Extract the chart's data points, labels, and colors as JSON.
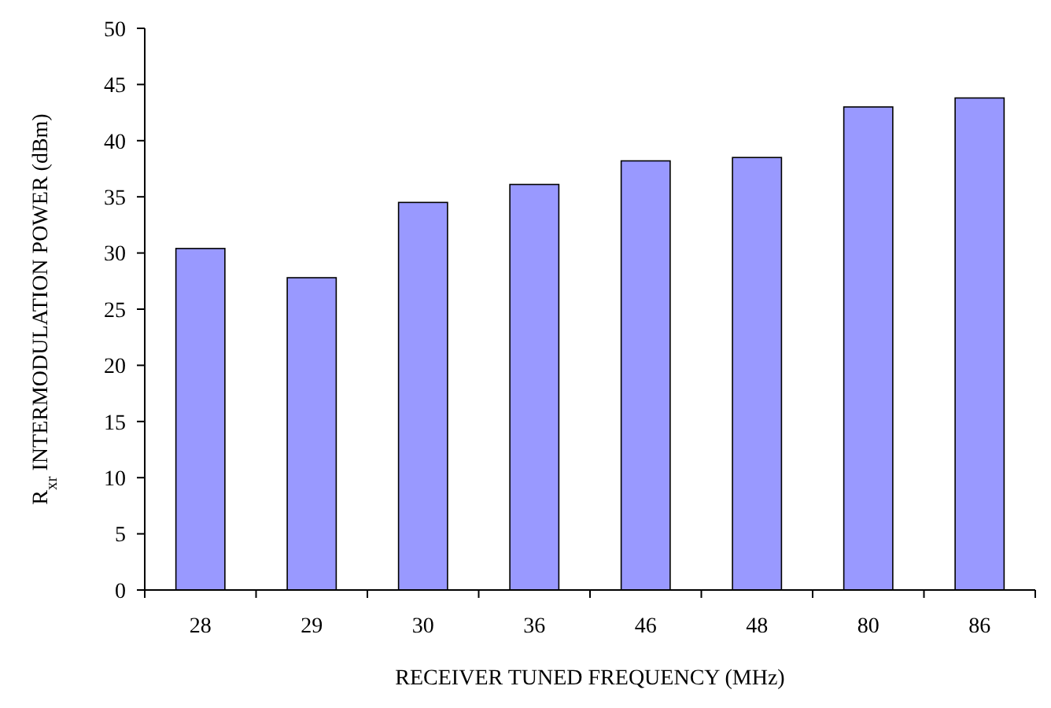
{
  "chart_data": {
    "type": "bar",
    "xlabel": "RECEIVER TUNED FREQUENCY (MHz)",
    "ylabel": "R$_{xr}$ INTERMODULATION POWER (dBm)",
    "categories": [
      "28",
      "29",
      "30",
      "36",
      "46",
      "48",
      "80",
      "86"
    ],
    "values": [
      30.4,
      27.8,
      34.5,
      36.1,
      38.2,
      38.5,
      43.0,
      43.8
    ],
    "color": "#9999ff",
    "ylim": [
      0,
      50
    ],
    "yticks": [
      0,
      5,
      10,
      15,
      20,
      25,
      30,
      35,
      40,
      45,
      50
    ],
    "grid": false
  }
}
